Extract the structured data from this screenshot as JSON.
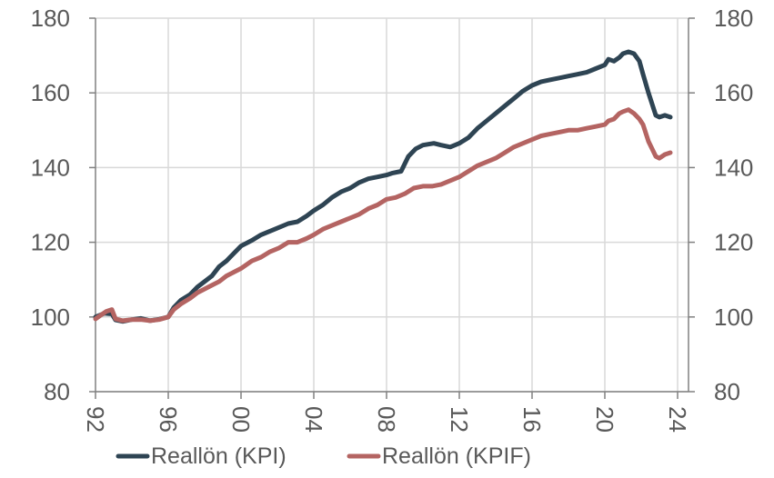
{
  "chart_data": {
    "type": "line",
    "title": "",
    "xlabel": "",
    "ylabel": "",
    "x_tick_labels": [
      "92",
      "96",
      "00",
      "04",
      "08",
      "12",
      "16",
      "20",
      "24"
    ],
    "x_tick_years": [
      1992,
      1996,
      2000,
      2004,
      2008,
      2012,
      2016,
      2020,
      2024
    ],
    "xlim": [
      1992,
      2024.6
    ],
    "y_tick_labels": [
      "80",
      "100",
      "120",
      "140",
      "160",
      "180"
    ],
    "y_ticks": [
      80,
      100,
      120,
      140,
      160,
      180
    ],
    "ylim": [
      80,
      180
    ],
    "grid": true,
    "legend_position": "bottom",
    "series": [
      {
        "name": "Reallön (KPI)",
        "color": "#2e4453",
        "points": [
          [
            1992.0,
            100.0
          ],
          [
            1992.5,
            101.0
          ],
          [
            1992.9,
            100.8
          ],
          [
            1993.1,
            99.2
          ],
          [
            1993.5,
            98.8
          ],
          [
            1994.0,
            99.3
          ],
          [
            1994.5,
            99.6
          ],
          [
            1995.0,
            99.0
          ],
          [
            1995.5,
            99.4
          ],
          [
            1996.0,
            100.0
          ],
          [
            1996.3,
            102.5
          ],
          [
            1996.7,
            104.5
          ],
          [
            1997.2,
            106.0
          ],
          [
            1997.6,
            108.0
          ],
          [
            1998.0,
            109.5
          ],
          [
            1998.4,
            111.0
          ],
          [
            1998.8,
            113.5
          ],
          [
            1999.2,
            115.0
          ],
          [
            1999.6,
            117.0
          ],
          [
            2000.0,
            119.0
          ],
          [
            2000.6,
            120.5
          ],
          [
            2001.1,
            122.0
          ],
          [
            2001.6,
            123.0
          ],
          [
            2002.1,
            124.0
          ],
          [
            2002.6,
            125.0
          ],
          [
            2003.1,
            125.5
          ],
          [
            2003.6,
            127.0
          ],
          [
            2004.0,
            128.5
          ],
          [
            2004.5,
            130.0
          ],
          [
            2005.0,
            132.0
          ],
          [
            2005.5,
            133.5
          ],
          [
            2006.0,
            134.5
          ],
          [
            2006.5,
            136.0
          ],
          [
            2007.0,
            137.0
          ],
          [
            2007.5,
            137.5
          ],
          [
            2008.0,
            138.0
          ],
          [
            2008.3,
            138.5
          ],
          [
            2008.8,
            139.0
          ],
          [
            2009.2,
            143.0
          ],
          [
            2009.6,
            145.0
          ],
          [
            2010.0,
            146.0
          ],
          [
            2010.6,
            146.5
          ],
          [
            2011.0,
            146.0
          ],
          [
            2011.5,
            145.5
          ],
          [
            2012.0,
            146.5
          ],
          [
            2012.5,
            148.0
          ],
          [
            2013.0,
            150.5
          ],
          [
            2013.5,
            152.5
          ],
          [
            2014.0,
            154.5
          ],
          [
            2014.5,
            156.5
          ],
          [
            2015.0,
            158.5
          ],
          [
            2015.5,
            160.5
          ],
          [
            2016.0,
            162.0
          ],
          [
            2016.5,
            163.0
          ],
          [
            2017.0,
            163.5
          ],
          [
            2017.5,
            164.0
          ],
          [
            2018.0,
            164.5
          ],
          [
            2018.5,
            165.0
          ],
          [
            2019.0,
            165.5
          ],
          [
            2019.5,
            166.5
          ],
          [
            2020.0,
            167.5
          ],
          [
            2020.2,
            169.0
          ],
          [
            2020.5,
            168.5
          ],
          [
            2020.8,
            169.5
          ],
          [
            2021.0,
            170.5
          ],
          [
            2021.3,
            171.0
          ],
          [
            2021.6,
            170.5
          ],
          [
            2021.9,
            168.5
          ],
          [
            2022.1,
            165.0
          ],
          [
            2022.4,
            160.0
          ],
          [
            2022.6,
            157.0
          ],
          [
            2022.8,
            154.0
          ],
          [
            2023.0,
            153.5
          ],
          [
            2023.3,
            154.0
          ],
          [
            2023.6,
            153.5
          ]
        ]
      },
      {
        "name": "Reallön (KPIF)",
        "color": "#b46462",
        "points": [
          [
            1992.0,
            99.5
          ],
          [
            1992.3,
            100.5
          ],
          [
            1992.6,
            101.5
          ],
          [
            1992.9,
            102.0
          ],
          [
            1993.1,
            99.5
          ],
          [
            1993.5,
            99.0
          ],
          [
            1994.0,
            99.3
          ],
          [
            1994.5,
            99.3
          ],
          [
            1995.0,
            99.0
          ],
          [
            1995.5,
            99.3
          ],
          [
            1996.0,
            100.0
          ],
          [
            1996.3,
            102.0
          ],
          [
            1996.7,
            103.5
          ],
          [
            1997.2,
            105.0
          ],
          [
            1997.6,
            106.5
          ],
          [
            1998.0,
            107.5
          ],
          [
            1998.4,
            108.5
          ],
          [
            1998.8,
            109.5
          ],
          [
            1999.2,
            111.0
          ],
          [
            1999.6,
            112.0
          ],
          [
            2000.0,
            113.0
          ],
          [
            2000.6,
            115.0
          ],
          [
            2001.1,
            116.0
          ],
          [
            2001.6,
            117.5
          ],
          [
            2002.1,
            118.5
          ],
          [
            2002.6,
            120.0
          ],
          [
            2003.1,
            120.0
          ],
          [
            2003.6,
            121.0
          ],
          [
            2004.0,
            122.0
          ],
          [
            2004.5,
            123.5
          ],
          [
            2005.0,
            124.5
          ],
          [
            2005.5,
            125.5
          ],
          [
            2006.0,
            126.5
          ],
          [
            2006.5,
            127.5
          ],
          [
            2007.0,
            129.0
          ],
          [
            2007.5,
            130.0
          ],
          [
            2008.0,
            131.5
          ],
          [
            2008.5,
            132.0
          ],
          [
            2009.0,
            133.0
          ],
          [
            2009.5,
            134.5
          ],
          [
            2010.0,
            135.0
          ],
          [
            2010.5,
            135.0
          ],
          [
            2011.0,
            135.5
          ],
          [
            2011.5,
            136.5
          ],
          [
            2012.0,
            137.5
          ],
          [
            2012.5,
            139.0
          ],
          [
            2013.0,
            140.5
          ],
          [
            2013.5,
            141.5
          ],
          [
            2014.0,
            142.5
          ],
          [
            2014.5,
            144.0
          ],
          [
            2015.0,
            145.5
          ],
          [
            2015.5,
            146.5
          ],
          [
            2016.0,
            147.5
          ],
          [
            2016.5,
            148.5
          ],
          [
            2017.0,
            149.0
          ],
          [
            2017.5,
            149.5
          ],
          [
            2018.0,
            150.0
          ],
          [
            2018.5,
            150.0
          ],
          [
            2019.0,
            150.5
          ],
          [
            2019.5,
            151.0
          ],
          [
            2020.0,
            151.5
          ],
          [
            2020.2,
            152.5
          ],
          [
            2020.5,
            153.0
          ],
          [
            2020.8,
            154.5
          ],
          [
            2021.0,
            155.0
          ],
          [
            2021.3,
            155.5
          ],
          [
            2021.6,
            154.5
          ],
          [
            2021.9,
            153.0
          ],
          [
            2022.1,
            151.5
          ],
          [
            2022.4,
            147.0
          ],
          [
            2022.6,
            145.0
          ],
          [
            2022.8,
            143.0
          ],
          [
            2023.0,
            142.5
          ],
          [
            2023.3,
            143.5
          ],
          [
            2023.6,
            144.0
          ]
        ]
      }
    ]
  }
}
